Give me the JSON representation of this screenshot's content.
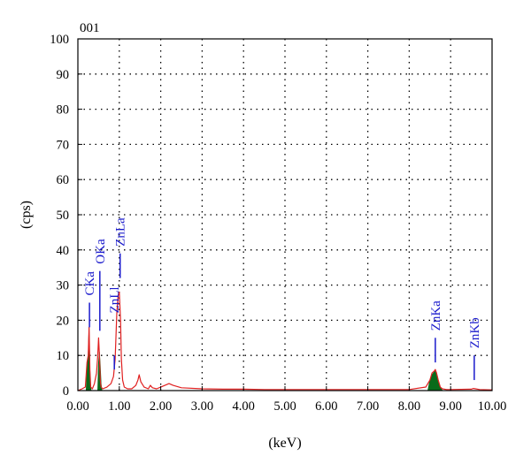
{
  "chart_data": {
    "type": "line",
    "title": "001",
    "xlabel": "(keV)",
    "ylabel": "(cps)",
    "xlim": [
      0,
      10
    ],
    "ylim": [
      0,
      100
    ],
    "x_ticks": [
      "0.00",
      "1.00",
      "2.00",
      "3.00",
      "4.00",
      "5.00",
      "6.00",
      "7.00",
      "8.00",
      "9.00",
      "10.00"
    ],
    "y_ticks": [
      "0",
      "10",
      "20",
      "30",
      "40",
      "50",
      "60",
      "70",
      "80",
      "90",
      "100"
    ],
    "grid": true,
    "colors": {
      "spectrum": "#e02020",
      "fill": "#0a6b1a",
      "marker": "#1a1acc",
      "axis": "#000000"
    },
    "series": [
      {
        "x": [
          0.0,
          0.1,
          0.18,
          0.22,
          0.25,
          0.27,
          0.29,
          0.31,
          0.35,
          0.4,
          0.45,
          0.48,
          0.5,
          0.52,
          0.54,
          0.56,
          0.6,
          0.7,
          0.8,
          0.86,
          0.9,
          0.94,
          0.97,
          1.0,
          1.03,
          1.05,
          1.08,
          1.12,
          1.2,
          1.3,
          1.4,
          1.45,
          1.48,
          1.52,
          1.6,
          1.7,
          1.75,
          1.8,
          1.9,
          2.0,
          2.1,
          2.2,
          2.3,
          2.5,
          3.0,
          3.5,
          4.0,
          4.5,
          5.0,
          6.0,
          7.0,
          8.0,
          8.4,
          8.5,
          8.55,
          8.6,
          8.63,
          8.66,
          8.7,
          8.75,
          8.8,
          8.9,
          9.0,
          9.5,
          9.55,
          9.6,
          9.7,
          10.0
        ],
        "y": [
          0,
          0.5,
          1,
          8,
          10,
          18,
          6,
          1,
          0.5,
          2,
          5,
          10,
          15,
          10,
          3,
          1,
          0.5,
          1,
          2,
          4,
          9,
          22,
          27,
          28,
          20,
          9,
          3,
          1,
          0.5,
          0.5,
          1.5,
          3,
          4.5,
          2.5,
          1,
          0.5,
          1.5,
          0.8,
          0.5,
          1,
          1.5,
          2,
          1.5,
          0.8,
          0.5,
          0.4,
          0.4,
          0.3,
          0.3,
          0.3,
          0.3,
          0.3,
          1,
          3,
          5,
          5.5,
          6,
          5,
          3,
          1,
          0.5,
          0.3,
          0.3,
          0.4,
          0.6,
          0.5,
          0.3,
          0.2
        ]
      }
    ],
    "filled_regions": [
      {
        "x": [
          0.2,
          0.22,
          0.24,
          0.25,
          0.26,
          0.27,
          0.28,
          0.29,
          0.3,
          0.32
        ],
        "y": [
          0,
          6,
          9,
          10,
          14,
          18,
          12,
          6,
          2,
          0
        ]
      },
      {
        "x": [
          0.48,
          0.5,
          0.52,
          0.54,
          0.56,
          0.58
        ],
        "y": [
          0,
          8,
          11,
          7,
          2,
          0
        ]
      },
      {
        "x": [
          8.45,
          8.5,
          8.55,
          8.6,
          8.63,
          8.66,
          8.7,
          8.75,
          8.8
        ],
        "y": [
          0,
          3,
          4.5,
          5.2,
          5.5,
          4.5,
          3,
          1,
          0
        ]
      }
    ],
    "annotations": [
      {
        "label": "CKa",
        "x": 0.28,
        "y_low": 18,
        "y_high": 25,
        "text_y": 27
      },
      {
        "label": "OKa",
        "x": 0.53,
        "y_low": 17,
        "y_high": 34,
        "text_y": 36
      },
      {
        "label": "ZnLl",
        "x": 0.88,
        "y_low": 6,
        "y_high": 10,
        "text_y": 22
      },
      {
        "label": "ZnLa",
        "x": 1.02,
        "y_low": 32,
        "y_high": 39,
        "text_y": 41
      },
      {
        "label": "ZnKa",
        "x": 8.63,
        "y_low": 8,
        "y_high": 15,
        "text_y": 17
      },
      {
        "label": "ZnKb",
        "x": 9.57,
        "y_low": 3,
        "y_high": 10,
        "text_y": 12
      }
    ]
  }
}
